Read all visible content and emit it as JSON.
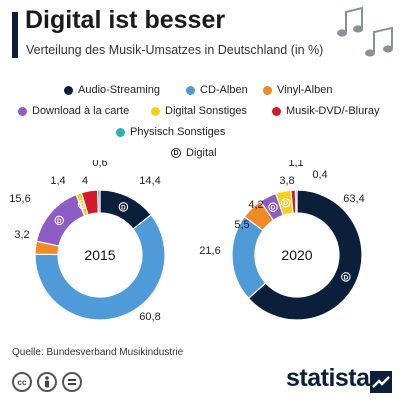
{
  "header": {
    "title": "Digital ist besser",
    "subtitle": "Verteilung des Musik-Umsatzes in Deutschland (in %)"
  },
  "legend": {
    "items": [
      {
        "label": "Audio-Streaming",
        "color": "#0b1f3a"
      },
      {
        "label": "CD-Alben",
        "color": "#4f9bd9"
      },
      {
        "label": "Vinyl-Alben",
        "color": "#f08a24"
      },
      {
        "label": "Download à la carte",
        "color": "#8e5cc7"
      },
      {
        "label": "Digital Sonstiges",
        "color": "#f5d20f"
      },
      {
        "label": "Musik-DVD/-Bluray",
        "color": "#d7182a"
      },
      {
        "label": "Physisch Sonstiges",
        "color": "#2bb3b3"
      }
    ],
    "digital_marker_label": "Digital",
    "digital_marker_symbol": "D"
  },
  "chart_data": {
    "type": "pie",
    "variant": "donut",
    "categories": [
      "Audio-Streaming",
      "CD-Alben",
      "Vinyl-Alben",
      "Download à la carte",
      "Digital Sonstiges",
      "Musik-DVD/-Bluray",
      "Physisch Sonstiges"
    ],
    "digital": [
      true,
      false,
      false,
      true,
      true,
      false,
      false
    ],
    "series": [
      {
        "name": "2015",
        "values": [
          14.4,
          60.8,
          3.2,
          15.6,
          1.4,
          4.0,
          0.6
        ]
      },
      {
        "name": "2020",
        "values": [
          63.4,
          21.6,
          5.5,
          4.2,
          3.8,
          1.1,
          0.4
        ]
      }
    ]
  },
  "footer": {
    "source": "Quelle: Bundesverband Musikindustrie",
    "brand": "statista",
    "license_icons": [
      "creative-commons-icon",
      "attribution-icon",
      "no-derivatives-icon"
    ]
  }
}
